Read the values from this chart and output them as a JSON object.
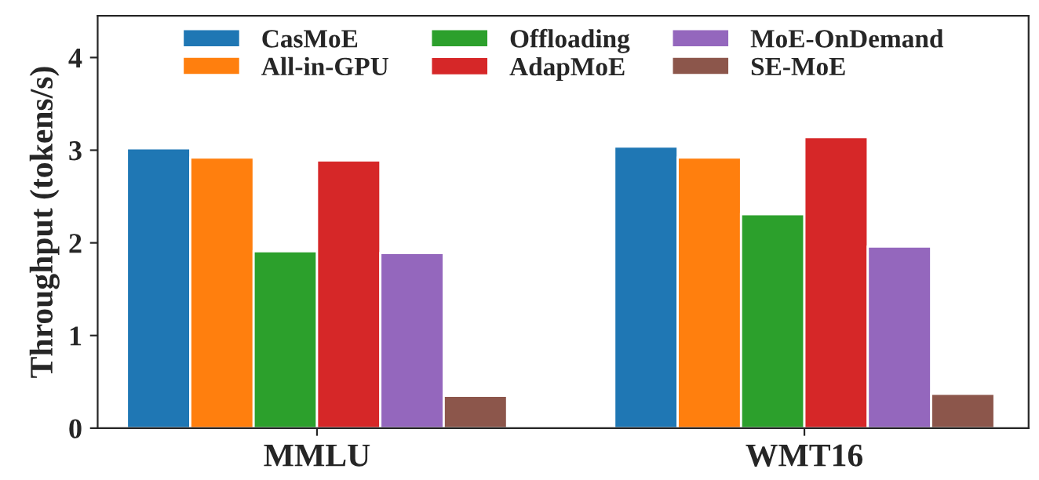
{
  "chart_data": {
    "type": "bar",
    "ylabel": "Throughput (tokens/s)",
    "categories": [
      "MMLU",
      "WMT16"
    ],
    "series": [
      {
        "name": "CasMoE",
        "color": "#1f77b4",
        "values": [
          3.02,
          3.04
        ]
      },
      {
        "name": "All-in-GPU",
        "color": "#ff7f0e",
        "values": [
          2.92,
          2.92
        ]
      },
      {
        "name": "Offloading",
        "color": "#2ca02c",
        "values": [
          1.91,
          2.31
        ]
      },
      {
        "name": "AdapMoE",
        "color": "#d62728",
        "values": [
          2.89,
          3.14
        ]
      },
      {
        "name": "MoE-OnDemand",
        "color": "#9467bd",
        "values": [
          1.89,
          1.96
        ]
      },
      {
        "name": "SE-MoE",
        "color": "#8c564b",
        "values": [
          0.35,
          0.37
        ]
      }
    ],
    "ylim": [
      0,
      4.45
    ],
    "yticks": [
      0,
      1,
      2,
      3,
      4
    ],
    "grid": false,
    "legend": "top"
  }
}
